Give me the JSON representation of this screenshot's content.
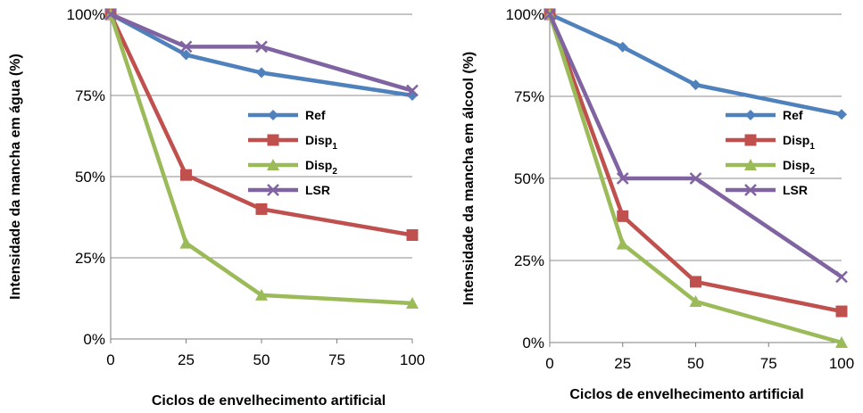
{
  "chart_data": [
    {
      "type": "line",
      "ylabel": "Intensidade da mancha em água (%)",
      "xlabel": "Ciclos de envelhecimento artificial",
      "x": [
        0,
        25,
        50,
        100
      ],
      "x_ticks": [
        "0",
        "25",
        "50",
        "75",
        "100"
      ],
      "xlim": [
        0,
        100
      ],
      "y_ticks": [
        "0%",
        "25%",
        "50%",
        "75%",
        "100%"
      ],
      "ylim": [
        0,
        100
      ],
      "grid": "horizontal",
      "legend_position": "center-right",
      "series": [
        {
          "name": "Ref",
          "sub": "",
          "color": "#4F81BD",
          "marker": "diamond",
          "values": [
            100,
            87.5,
            82,
            75
          ]
        },
        {
          "name": "Disp",
          "sub": "1",
          "color": "#C0504D",
          "marker": "square",
          "values": [
            100,
            50.5,
            40,
            32
          ]
        },
        {
          "name": "Disp",
          "sub": "2",
          "color": "#9BBB59",
          "marker": "triangle",
          "values": [
            100,
            29.5,
            13.5,
            11
          ]
        },
        {
          "name": "LSR",
          "sub": "",
          "color": "#8064A2",
          "marker": "x",
          "values": [
            100,
            90,
            90,
            76.5
          ]
        }
      ]
    },
    {
      "type": "line",
      "ylabel": "Intensidade da mancha em álcool (%)",
      "xlabel": "Ciclos de envelhecimento artificial",
      "x": [
        0,
        25,
        50,
        100
      ],
      "x_ticks": [
        "0",
        "25",
        "50",
        "75",
        "100"
      ],
      "xlim": [
        0,
        100
      ],
      "y_ticks": [
        "0%",
        "25%",
        "50%",
        "75%",
        "100%"
      ],
      "ylim": [
        0,
        100
      ],
      "grid": "horizontal",
      "legend_position": "center-right",
      "series": [
        {
          "name": "Ref",
          "sub": "",
          "color": "#4F81BD",
          "marker": "diamond",
          "values": [
            100,
            90,
            78.5,
            69.5
          ]
        },
        {
          "name": "Disp",
          "sub": "1",
          "color": "#C0504D",
          "marker": "square",
          "values": [
            100,
            38.5,
            18.5,
            9.5
          ]
        },
        {
          "name": "Disp",
          "sub": "2",
          "color": "#9BBB59",
          "marker": "triangle",
          "values": [
            100,
            30,
            12.5,
            0
          ]
        },
        {
          "name": "LSR",
          "sub": "",
          "color": "#8064A2",
          "marker": "x",
          "values": [
            100,
            50,
            50,
            20
          ]
        }
      ]
    }
  ]
}
